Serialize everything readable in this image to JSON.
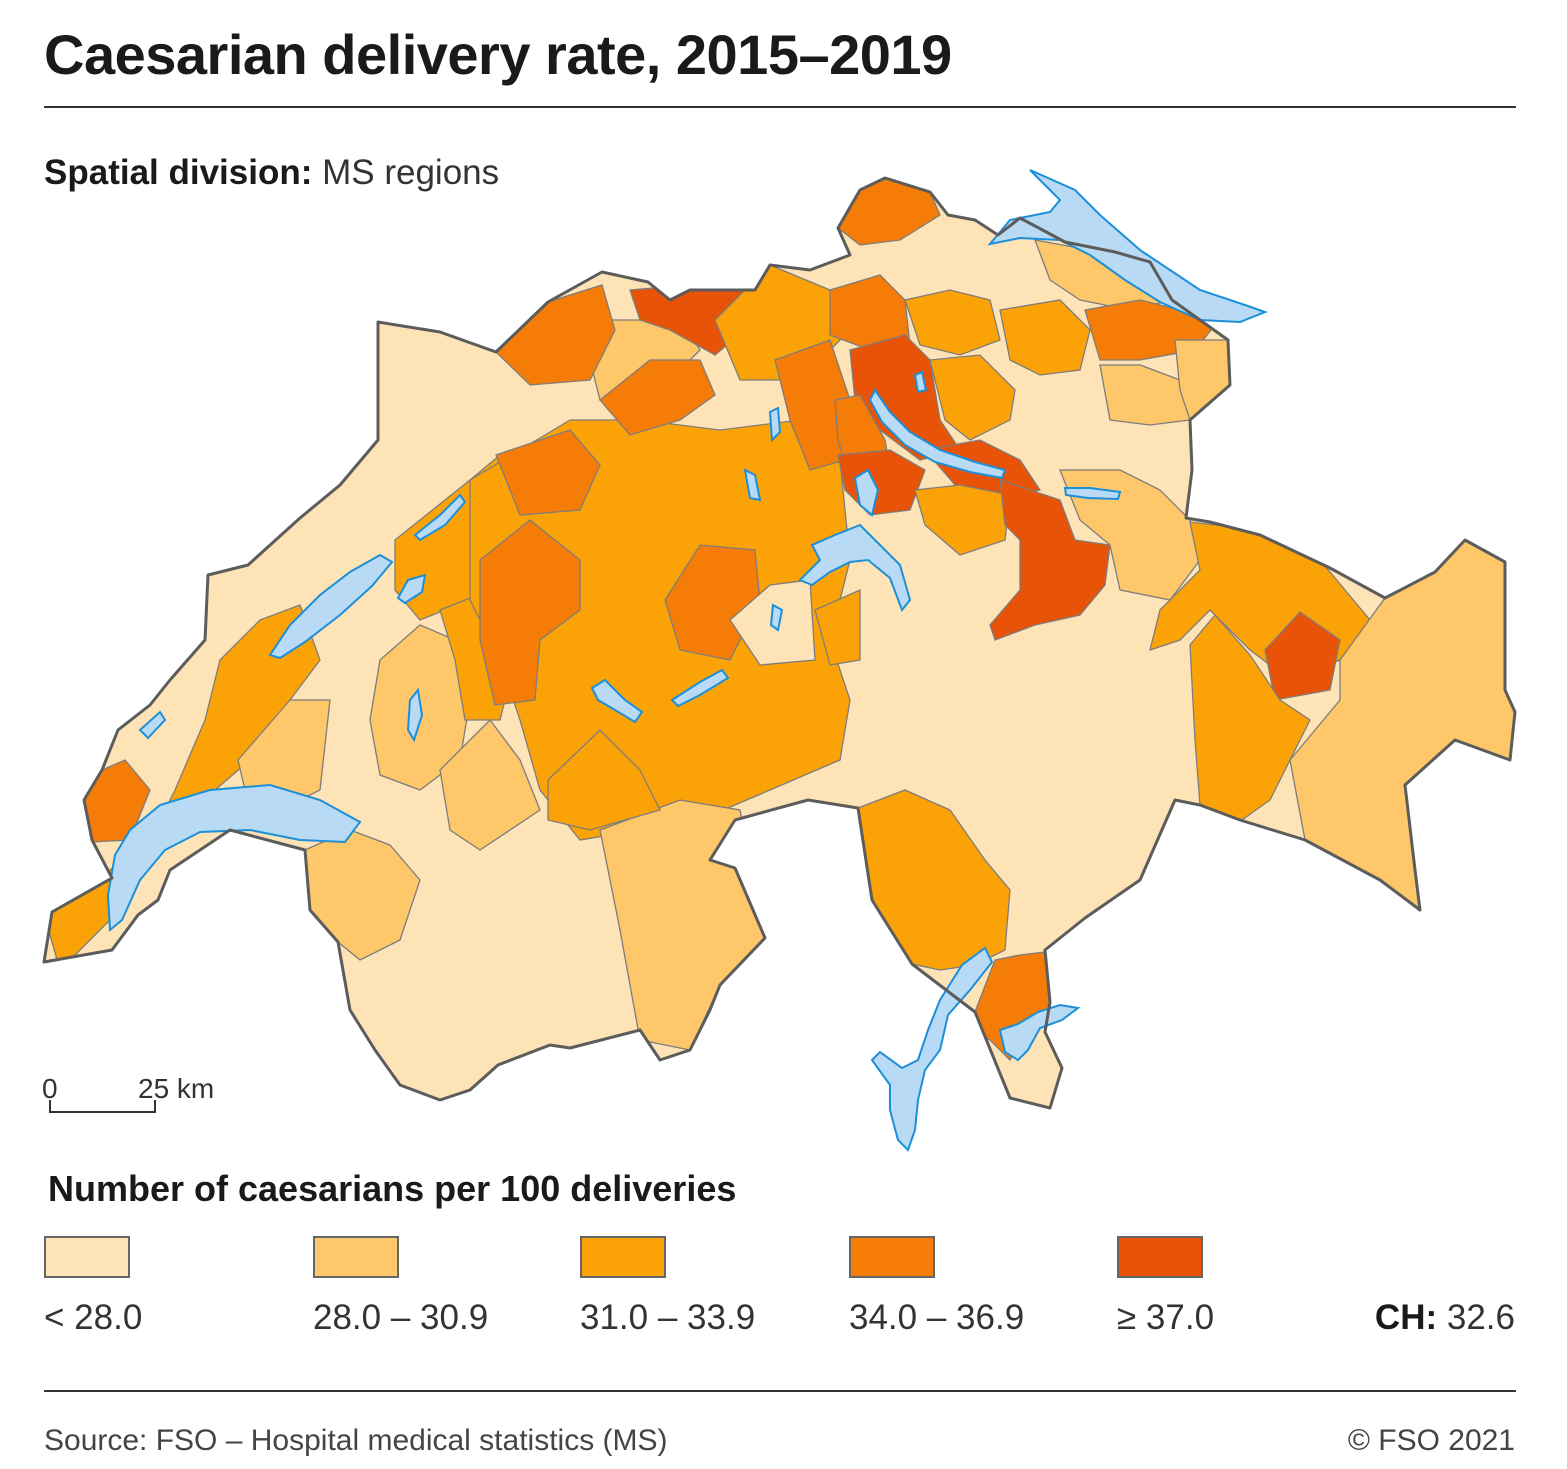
{
  "title": "Caesarian delivery rate, 2015–2019",
  "subtitle": {
    "label": "Spatial division:",
    "value": "MS regions"
  },
  "scale_bar": {
    "start": "0",
    "end": "25 km"
  },
  "legend": {
    "title": "Number of caesarians per 100 deliveries",
    "classes": [
      {
        "label": "< 28.0",
        "color": "#fde3b5"
      },
      {
        "label": "28.0 – 30.9",
        "color": "#fdc76a"
      },
      {
        "label": "31.0 – 33.9",
        "color": "#fba306"
      },
      {
        "label": "34.0 – 36.9",
        "color": "#f57c07"
      },
      {
        "label": "≥ 37.0",
        "color": "#e85307"
      }
    ]
  },
  "national": {
    "label": "CH:",
    "value": "32.6"
  },
  "source": "Source: FSO – Hospital medical statistics (MS)",
  "copyright": "© FSO 2021",
  "map_colors": {
    "lake": "#b9daf4",
    "lake_edge": "#1b8fd9",
    "border": "#5c5c5c"
  }
}
